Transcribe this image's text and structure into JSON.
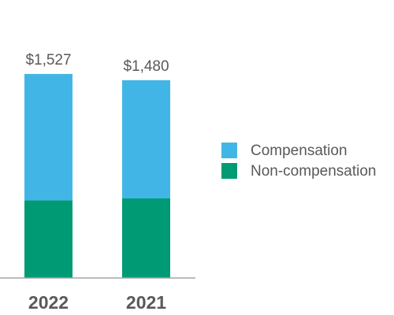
{
  "chart_data": {
    "type": "bar",
    "stacked": true,
    "categories": [
      "2022",
      "2021"
    ],
    "series": [
      {
        "name": "Non-compensation",
        "color": "#009A74",
        "values": [
          581,
          595
        ]
      },
      {
        "name": "Compensation",
        "color": "#41B6E6",
        "values": [
          946,
          885
        ]
      }
    ],
    "totals": [
      "$1,527",
      "$1,480"
    ],
    "total_values": [
      1527,
      1480
    ],
    "ylim": [
      0,
      1650
    ],
    "legend_position": "right",
    "legend_order": [
      "Compensation",
      "Non-compensation"
    ],
    "axis_color": "#A6A6A6",
    "text_color": "#595959",
    "grid": false
  }
}
